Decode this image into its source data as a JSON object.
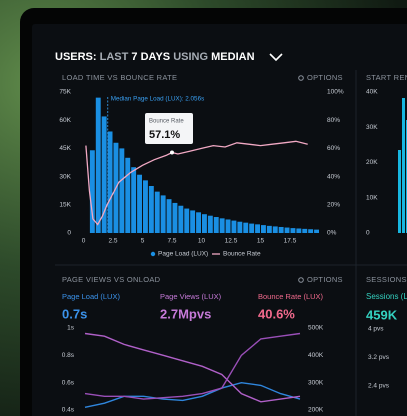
{
  "header": {
    "parts": [
      "USERS:",
      "LAST",
      "7 DAYS",
      "USING",
      "MEDIAN"
    ]
  },
  "side_panels": {
    "top": {
      "title": "START REN",
      "ticks": [
        "40K",
        "30K",
        "20K",
        "10K",
        "0"
      ]
    },
    "bottom": {
      "title": "SESSIONS",
      "metric_label": "Sessions (LUX)",
      "metric_value": "459K",
      "ticks": [
        "4 pvs",
        "3.2 pvs",
        "2.4 pvs"
      ]
    }
  },
  "chart_data": [
    {
      "type": "histogram",
      "title": "LOAD TIME VS BOUNCE RATE",
      "options": "OPTIONS",
      "bins": [
        0.5,
        1,
        1.5,
        2,
        2.5,
        3,
        3.5,
        4,
        4.5,
        5,
        5.5,
        6,
        6.5,
        7,
        7.5,
        8,
        8.5,
        9,
        9.5,
        10,
        10.5,
        11,
        11.5,
        12,
        12.5,
        13,
        13.5,
        14,
        14.5,
        15,
        15.5,
        16,
        16.5,
        17,
        17.5,
        18,
        18.5,
        19,
        19.5,
        20
      ],
      "series": [
        {
          "name": "Page Load (LUX)",
          "color": "#1a8fe3",
          "values": [
            44000,
            72000,
            62000,
            54000,
            48000,
            45000,
            40000,
            35000,
            31000,
            28000,
            25000,
            22000,
            20000,
            18000,
            16000,
            14500,
            13000,
            12000,
            11000,
            10000,
            9200,
            8500,
            7800,
            7200,
            6600,
            6000,
            5500,
            5000,
            4600,
            4200,
            3800,
            3500,
            3200,
            2900,
            2600,
            2400,
            2200,
            2000,
            1800
          ]
        },
        {
          "name": "Bounce Rate",
          "color": "#f2a9c4",
          "type": "line",
          "axis": "y2",
          "x": [
            0.2,
            0.5,
            0.8,
            1.2,
            1.6,
            2,
            2.5,
            3,
            4,
            5,
            6,
            7,
            7.5,
            8,
            9,
            10,
            11,
            12,
            13,
            14,
            15,
            16,
            17,
            18,
            19
          ],
          "values": [
            62,
            30,
            10,
            6,
            12,
            20,
            28,
            36,
            43,
            48,
            52,
            55,
            57.1,
            56,
            58,
            60,
            62,
            61,
            64,
            63,
            62,
            63,
            64,
            65,
            63
          ]
        }
      ],
      "median": {
        "value": 2.056,
        "label": "Median Page Load (LUX): 2.056s"
      },
      "tooltip": {
        "title": "Bounce Rate",
        "value": 57.1,
        "label": "57.1%"
      },
      "xlim": [
        0,
        20
      ],
      "xticks": [
        0,
        2.5,
        5,
        7.5,
        10,
        12.5,
        15,
        17.5
      ],
      "ylim": [
        0,
        75000
      ],
      "yticks": [
        {
          "value": 0,
          "label": "0"
        },
        {
          "value": 15000,
          "label": "15K"
        },
        {
          "value": 30000,
          "label": "30K"
        },
        {
          "value": 45000,
          "label": "45K"
        },
        {
          "value": 60000,
          "label": "60K"
        },
        {
          "value": 75000,
          "label": "75K"
        }
      ],
      "y2lim": [
        0,
        100
      ],
      "y2ticks": [
        {
          "value": 0,
          "label": "0%"
        },
        {
          "value": 20,
          "label": "20%"
        },
        {
          "value": 40,
          "label": "40%"
        },
        {
          "value": 60,
          "label": "60%"
        },
        {
          "value": 80,
          "label": "80%"
        },
        {
          "value": 100,
          "label": "100%"
        }
      ]
    },
    {
      "type": "line",
      "title": "PAGE VIEWS VS ONLOAD",
      "options": "OPTIONS",
      "metrics": [
        {
          "label": "Page Load (LUX)",
          "value": "0.7s",
          "color": "#3b93ec"
        },
        {
          "label": "Page Views (LUX)",
          "value": "2.7Mpvs",
          "color": "#c77ad9"
        },
        {
          "label": "Bounce Rate (LUX)",
          "value": "40.6%",
          "color": "#f26a8d"
        }
      ],
      "categories": [
        null,
        null,
        null,
        null,
        null,
        null,
        null,
        null,
        null,
        null,
        null,
        null
      ],
      "series": [
        {
          "color": "#2f86dd",
          "values": [
            0.42,
            0.45,
            0.5,
            0.5,
            0.48,
            0.47,
            0.5,
            0.56,
            0.6,
            0.58,
            0.52,
            0.48
          ]
        },
        {
          "color": "#b060c8",
          "axis": "y2",
          "values": [
            480000,
            470000,
            440000,
            420000,
            400000,
            380000,
            360000,
            330000,
            260000,
            230000,
            240000,
            250000
          ]
        },
        {
          "color": "#9a4fb8",
          "axis": "y2",
          "values": [
            260000,
            250000,
            250000,
            240000,
            245000,
            250000,
            260000,
            280000,
            400000,
            460000,
            470000,
            480000
          ]
        }
      ],
      "ylim": [
        0.4,
        1
      ],
      "yticks": [
        {
          "value": 1,
          "label": "1s"
        },
        {
          "value": 0.8,
          "label": "0.8s"
        },
        {
          "value": 0.6,
          "label": "0.6s"
        },
        {
          "value": 0.4,
          "label": "0.4s"
        }
      ],
      "y2lim": [
        200000,
        500000
      ],
      "y2ticks": [
        {
          "value": 500000,
          "label": "500K"
        },
        {
          "value": 400000,
          "label": "400K"
        },
        {
          "value": 300000,
          "label": "300K"
        },
        {
          "value": 200000,
          "label": "200K"
        }
      ]
    }
  ]
}
